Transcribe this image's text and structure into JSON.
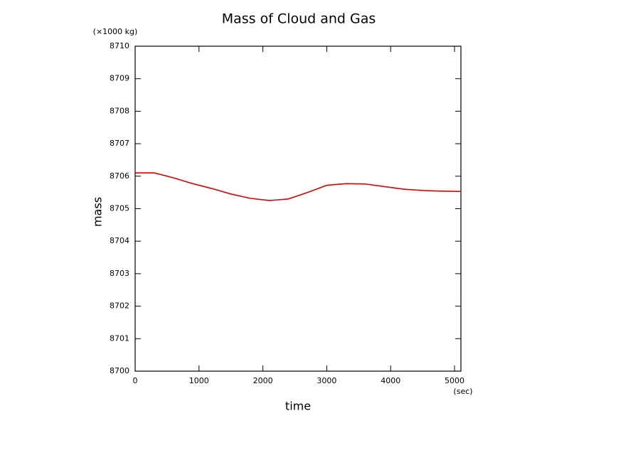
{
  "chart_data": {
    "type": "line",
    "title": "Mass of Cloud and Gas",
    "x_label": "time",
    "y_label": "mass",
    "x_unit": "(sec)",
    "y_unit": "(×1000 kg)",
    "x": [
      0,
      300,
      600,
      900,
      1200,
      1500,
      1800,
      2100,
      2400,
      2700,
      3000,
      3300,
      3600,
      3900,
      4200,
      4500,
      4800,
      5100
    ],
    "series": [
      {
        "name": "mass",
        "color": "#e00000",
        "values": [
          8706.1,
          8706.1,
          8705.95,
          8705.77,
          8705.62,
          8705.45,
          8705.32,
          8705.25,
          8705.3,
          8705.5,
          8705.72,
          8705.77,
          8705.76,
          8705.68,
          8705.6,
          8705.56,
          8705.54,
          8705.53
        ]
      }
    ],
    "xlim": [
      0,
      5100
    ],
    "xticks": [
      0,
      1000,
      2000,
      3000,
      4000,
      5000
    ],
    "ylim": [
      8700,
      8710
    ],
    "yticks": [
      8700,
      8701,
      8702,
      8703,
      8704,
      8705,
      8706,
      8707,
      8708,
      8709,
      8710
    ],
    "grid": false
  }
}
